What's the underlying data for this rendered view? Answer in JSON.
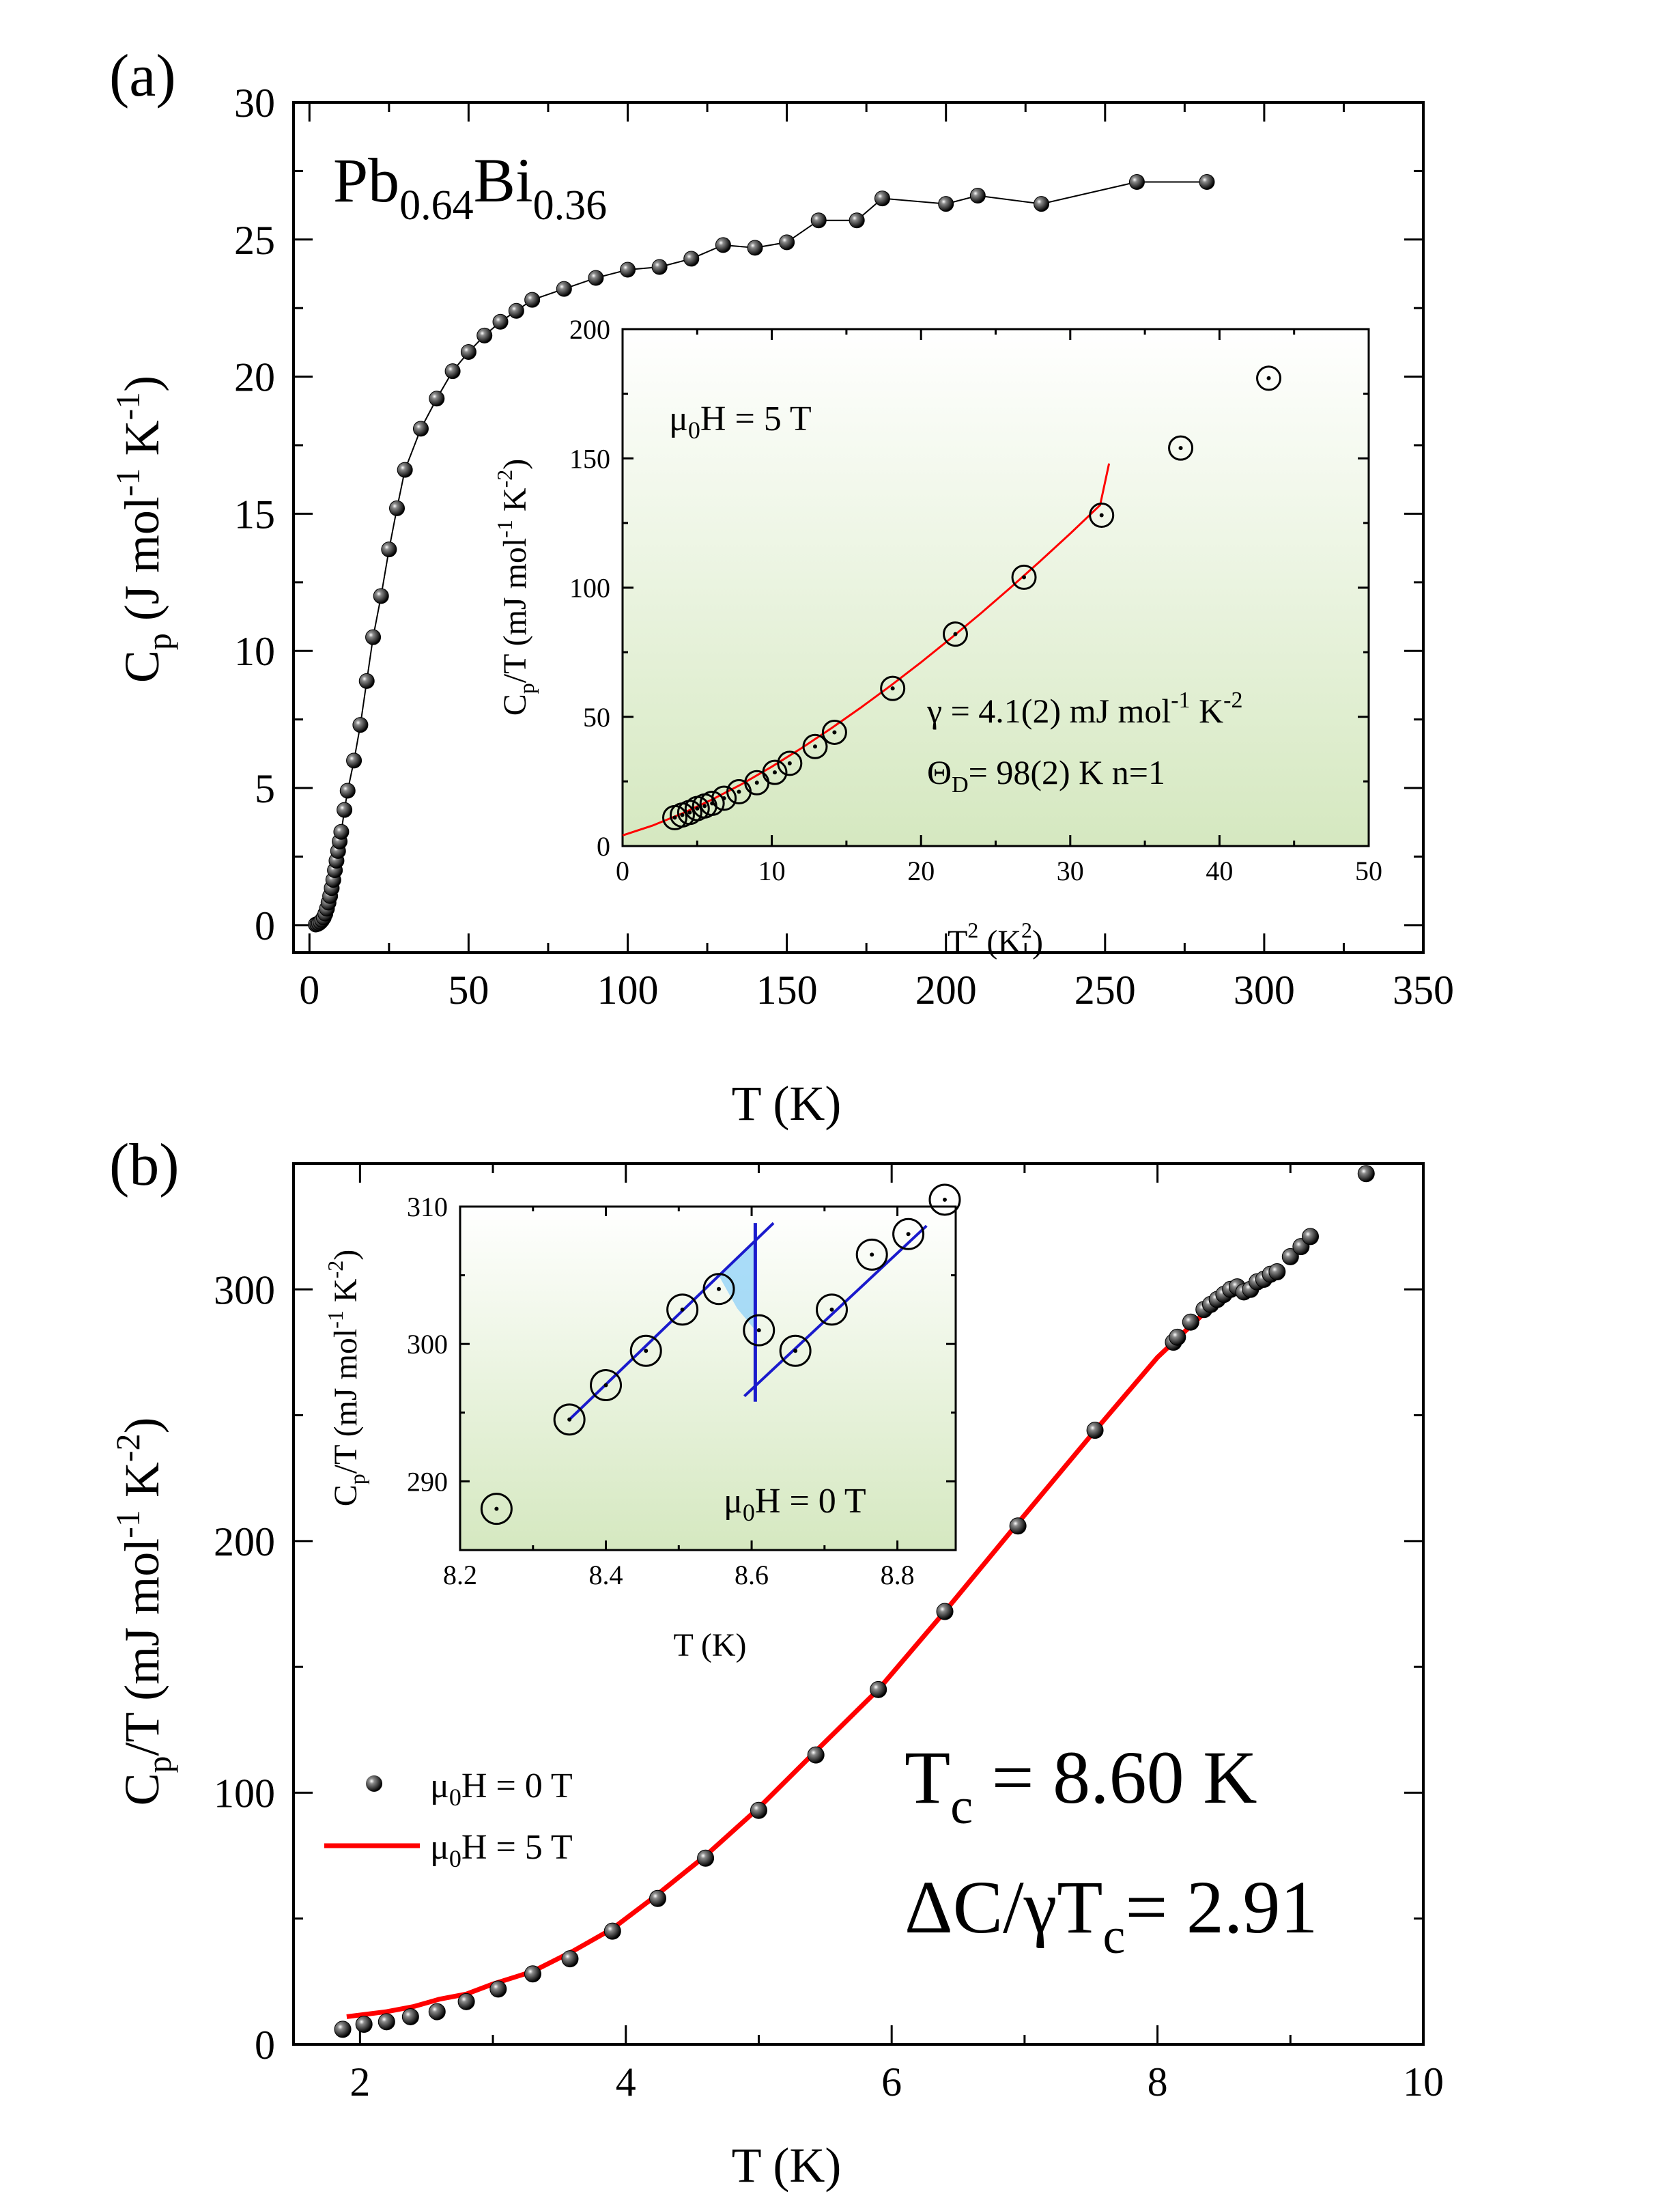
{
  "chart_data": [
    {
      "id": "a",
      "type": "scatter",
      "panel_label": "(a)",
      "title": "Pb0.64Bi0.36",
      "title_parts": {
        "base1": "Pb",
        "sub1": "0.64",
        "base2": "Bi",
        "sub2": "0.36"
      },
      "xlabel": "T (K)",
      "ylabel": {
        "base": "C",
        "sub": "p",
        "rest1": " (J mol",
        "sup1": "-1",
        "rest2": " K",
        "sup2": "-1",
        "rest3": ")"
      },
      "xlim": [
        -5,
        350
      ],
      "ylim": [
        -1,
        30
      ],
      "xticks": [
        0,
        50,
        100,
        150,
        200,
        250,
        300,
        350
      ],
      "yticks": [
        0,
        5,
        10,
        15,
        20,
        25,
        30
      ],
      "series": [
        {
          "name": "Cp",
          "x": [
            2,
            2.5,
            3,
            3.5,
            4,
            4.5,
            5,
            5.5,
            6,
            6.5,
            7,
            7.5,
            8,
            8.5,
            9,
            9.5,
            10,
            11,
            12,
            14,
            16,
            18,
            20,
            22.5,
            25,
            27.5,
            30,
            35,
            40,
            45,
            50,
            55,
            60,
            65,
            70,
            80,
            90,
            100,
            110,
            120,
            130,
            140,
            150,
            160,
            172,
            180,
            200,
            210,
            230,
            260,
            282
          ],
          "y": [
            0.02,
            0.04,
            0.07,
            0.12,
            0.19,
            0.28,
            0.42,
            0.6,
            0.82,
            1.06,
            1.35,
            1.65,
            2.0,
            2.35,
            2.7,
            3.05,
            3.4,
            4.2,
            4.9,
            6.0,
            7.3,
            8.9,
            10.5,
            12.0,
            13.7,
            15.2,
            16.6,
            18.1,
            19.2,
            20.2,
            20.9,
            21.5,
            22.0,
            22.4,
            22.8,
            23.2,
            23.6,
            23.9,
            24.0,
            24.3,
            24.8,
            24.7,
            24.9,
            25.7,
            25.7,
            26.5,
            26.3,
            26.6,
            26.3,
            27.1,
            27.1
          ],
          "marker": "filled-circle"
        }
      ],
      "inset": {
        "xlabel": {
          "base": "T",
          "sup": "2",
          "rest": " (K",
          "sup2": "2",
          "end": ")"
        },
        "ylabel": {
          "base": "C",
          "sub": "p",
          "rest1": "/T (mJ mol",
          "sup1": "-1",
          "rest2": " K",
          "sup2": "-2",
          "rest3": ")"
        },
        "xlim": [
          0,
          50
        ],
        "ylim": [
          0,
          200
        ],
        "xticks": [
          0,
          10,
          20,
          30,
          40,
          50
        ],
        "yticks": [
          0,
          50,
          100,
          150,
          200
        ],
        "points_x": [
          3.5,
          4.0,
          4.5,
          5.0,
          5.5,
          6.0,
          6.8,
          7.8,
          9.0,
          10.2,
          11.2,
          12.9,
          14.2,
          18.1,
          22.3,
          26.9,
          32.1,
          37.4,
          43.3
        ],
        "points_y": [
          11,
          12,
          13,
          14.5,
          15.5,
          16.5,
          18.5,
          21,
          24.5,
          28.5,
          32,
          38.5,
          44,
          61,
          82,
          104,
          128,
          154,
          181
        ],
        "fit_x": [
          0,
          2,
          4,
          6,
          8,
          10,
          12,
          14,
          16,
          18,
          20,
          22,
          24,
          26,
          28,
          30,
          32,
          32.6
        ],
        "fit_y": [
          4.1,
          7.9,
          12.6,
          18.0,
          24.0,
          30.7,
          37.9,
          45.6,
          53.7,
          62.2,
          71.1,
          80.4,
          90.0,
          100.0,
          110.3,
          120.9,
          131.9,
          148
        ],
        "annot_field": "μ0H = 5 T",
        "annot_gamma": "γ = 4.1(2) mJ mol-1 K-2",
        "annot_theta": "ΘD= 98(2) K   n=1",
        "annot_parts": {
          "mu": "μ",
          "mu_sub": "0",
          "field_rest": "H = 5 T",
          "gamma_base": "γ = 4.1(2) mJ mol",
          "gamma_sup1": "-1",
          "gamma_mid": " K",
          "gamma_sup2": "-2",
          "theta_base": "Θ",
          "theta_sub": "D",
          "theta_rest": "= 98(2) K   n=1"
        },
        "colors": {
          "fit": "#ff0000",
          "bg_top": "#ffffff",
          "bg_bottom": "#d5e8c0"
        }
      }
    },
    {
      "id": "b",
      "type": "scatter",
      "panel_label": "(b)",
      "xlabel": "T (K)",
      "ylabel": {
        "base": "C",
        "sub": "p",
        "rest1": "/T (mJ mol",
        "sup1": "-1",
        "rest2": " K",
        "sup2": "-2",
        "rest3": ")"
      },
      "xlim": [
        1.5,
        10
      ],
      "ylim": [
        0,
        350
      ],
      "xticks": [
        2,
        4,
        6,
        8,
        10
      ],
      "yticks": [
        0,
        100,
        200,
        300
      ],
      "series": [
        {
          "name": "μ0H = 0 T",
          "type": "scatter",
          "x": [
            1.87,
            2.03,
            2.2,
            2.38,
            2.58,
            2.8,
            3.04,
            3.3,
            3.58,
            3.9,
            4.24,
            4.6,
            5.0,
            5.43,
            5.9,
            6.4,
            6.95,
            7.53,
            8.12,
            8.15,
            8.25,
            8.35,
            8.4,
            8.45,
            8.5,
            8.55,
            8.6,
            8.65,
            8.7,
            8.75,
            8.8,
            8.85,
            8.9,
            9.0,
            9.08,
            9.15,
            9.57
          ],
          "y": [
            6,
            8,
            9,
            11,
            13,
            17,
            22,
            28,
            34,
            45,
            58,
            74,
            93,
            115,
            141,
            172,
            206,
            244,
            279,
            281,
            287,
            292,
            294,
            296,
            298,
            300,
            301,
            299,
            300,
            303,
            304,
            306,
            307,
            313,
            317,
            321,
            346
          ]
        },
        {
          "name": "μ0H = 5 T",
          "type": "line",
          "x": [
            1.9,
            2.2,
            2.4,
            2.6,
            2.8,
            3.0,
            3.3,
            3.6,
            3.9,
            4.2,
            4.6,
            5.0,
            5.4,
            5.9,
            6.4,
            6.9,
            7.5,
            8.0,
            8.4,
            8.6,
            8.9
          ],
          "y": [
            11,
            13,
            15,
            18,
            20,
            24,
            29,
            37,
            46,
            58,
            75,
            94,
            115,
            141,
            172,
            204,
            242,
            273,
            293,
            299,
            306
          ]
        }
      ],
      "legend": [
        {
          "label_base": "μ",
          "label_sub": "0",
          "label_rest": "H = 0 T"
        },
        {
          "label_base": "μ",
          "label_sub": "0",
          "label_rest": "H = 5 T"
        }
      ],
      "annot_tc": {
        "base": "T",
        "sub": "c",
        "rest": " = 8.60 K"
      },
      "annot_ratio": {
        "base": "ΔC/γT",
        "sub": "c",
        "rest": "= 2.91"
      },
      "inset": {
        "xlabel": "T (K)",
        "ylabel": {
          "base": "C",
          "sub": "p",
          "rest1": "/T (mJ mol",
          "sup1": "-1",
          "rest2": " K",
          "sup2": "-2",
          "rest3": ")"
        },
        "xlim": [
          8.2,
          8.88
        ],
        "ylim": [
          285,
          310
        ],
        "xticks": [
          8.2,
          8.4,
          8.6,
          8.8
        ],
        "yticks": [
          290,
          300,
          310
        ],
        "points_x": [
          8.25,
          8.35,
          8.4,
          8.455,
          8.505,
          8.555,
          8.61,
          8.66,
          8.71,
          8.765,
          8.815,
          8.865
        ],
        "points_y": [
          288,
          294.5,
          297,
          299.5,
          302.5,
          304,
          301,
          299.5,
          302.5,
          306.5,
          308,
          310.5
        ],
        "line_before": {
          "x": [
            8.35,
            8.63
          ],
          "y": [
            294.5,
            308.8
          ]
        },
        "line_after": {
          "x": [
            8.59,
            8.84
          ],
          "y": [
            296.2,
            308.6
          ]
        },
        "vline": {
          "x": 8.605,
          "y": [
            295.8,
            308.8
          ]
        },
        "annot_field": {
          "base": "μ",
          "sub": "0",
          "rest": "H = 0 T"
        },
        "colors": {
          "lines": "#1a1acc",
          "shade": "#87cefa",
          "bg_top": "#ffffff",
          "bg_bottom": "#d5e8c0"
        }
      },
      "colors": {
        "line": "#ff0000",
        "points": "#000000"
      }
    }
  ]
}
